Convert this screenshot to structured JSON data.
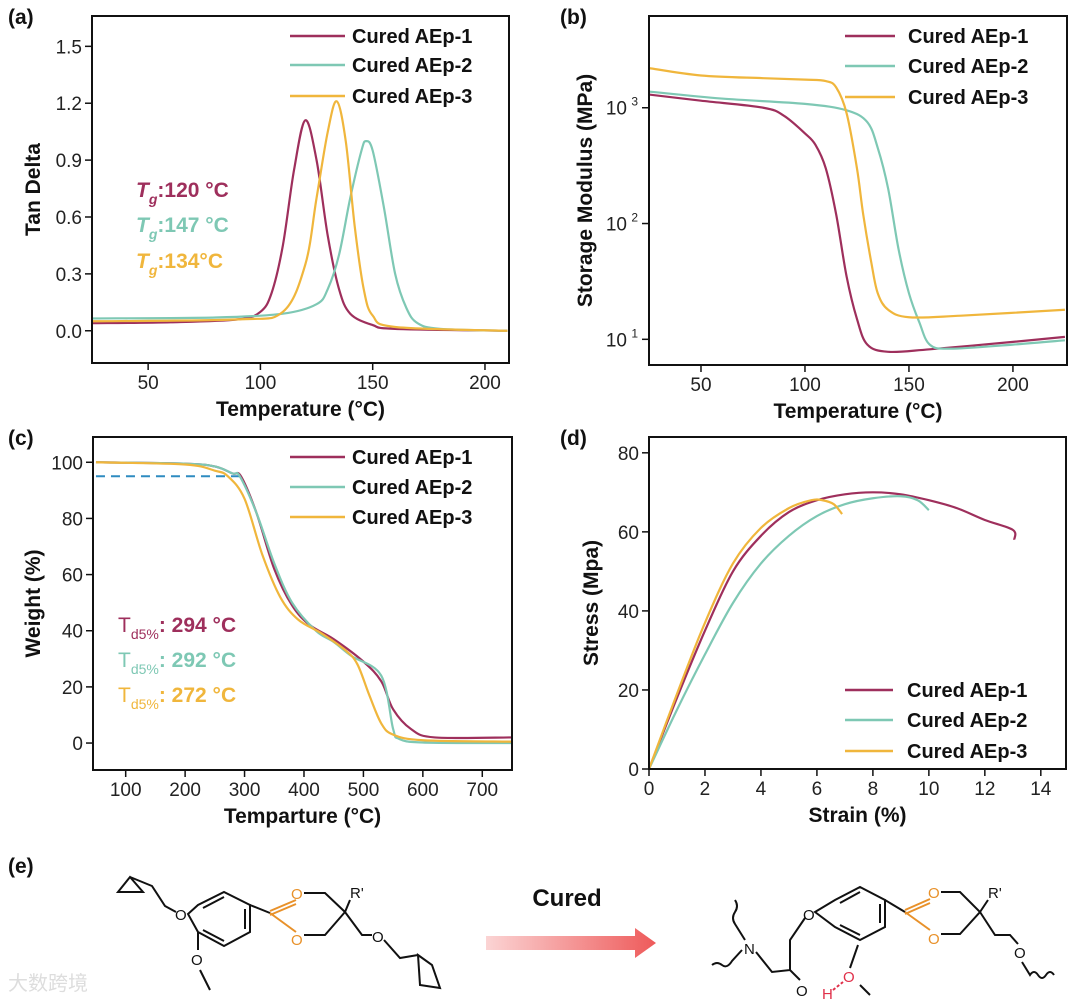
{
  "colors": {
    "AEp-1": "#9e2f5c",
    "AEp-2": "#7ec8b4",
    "AEp-3": "#f0b63c",
    "dashed": "#2e8bc0",
    "acetal": "#e8912a",
    "hbond": "#e0304a"
  },
  "chart_data": [
    {
      "panel": "(a)",
      "type": "line",
      "xlabel": "Temperature (°C)",
      "ylabel": "Tan Delta",
      "xlim": [
        25,
        210.7
      ],
      "ylim": [
        -0.17,
        1.66
      ],
      "yscale": "linear",
      "xticks": [
        50,
        100,
        150,
        200
      ],
      "xtick_labels": [
        "50",
        "100",
        "150",
        "200"
      ],
      "yticks": [
        0,
        0.3,
        0.6,
        0.9,
        1.2,
        1.5
      ],
      "ytick_labels": [
        "0.0",
        "0.3",
        "0.6",
        "0.9",
        "1.2",
        "1.5"
      ],
      "legend": "top-right",
      "series": [
        {
          "name": "Cured AEp-1",
          "color_key": "AEp-1",
          "x": [
            25,
            60,
            90,
            100,
            105,
            110,
            115,
            120,
            125,
            130,
            135,
            140,
            150,
            160,
            210
          ],
          "y": [
            0.04,
            0.045,
            0.06,
            0.1,
            0.2,
            0.45,
            0.85,
            1.11,
            0.9,
            0.5,
            0.22,
            0.09,
            0.03,
            0.01,
            0.0
          ]
        },
        {
          "name": "Cured AEp-2",
          "color_key": "AEp-2",
          "x": [
            25,
            80,
            110,
            125,
            130,
            135,
            140,
            145,
            147,
            150,
            155,
            160,
            165,
            170,
            180,
            210
          ],
          "y": [
            0.065,
            0.07,
            0.09,
            0.14,
            0.22,
            0.4,
            0.7,
            0.95,
            1.0,
            0.95,
            0.65,
            0.3,
            0.12,
            0.04,
            0.01,
            0.0
          ]
        },
        {
          "name": "Cured AEp-3",
          "color_key": "AEp-3",
          "x": [
            25,
            90,
            110,
            120,
            125,
            130,
            134,
            138,
            142,
            146,
            150,
            160,
            210
          ],
          "y": [
            0.05,
            0.06,
            0.1,
            0.35,
            0.7,
            1.05,
            1.21,
            1.0,
            0.55,
            0.22,
            0.08,
            0.02,
            0.0
          ]
        }
      ],
      "annotations": [
        {
          "symbol": "T",
          "sub": "g",
          "text": ":120 °C",
          "color_key": "AEp-1"
        },
        {
          "symbol": "T",
          "sub": "g",
          "text": ":147 °C",
          "color_key": "AEp-2"
        },
        {
          "symbol": "T",
          "sub": "g",
          "text": ":134°C",
          "color_key": "AEp-3"
        }
      ]
    },
    {
      "panel": "(b)",
      "type": "line",
      "xlabel": "Temperature (°C)",
      "ylabel": "Storage Modulus (MPa)",
      "xlim": [
        25,
        226
      ],
      "ylim": [
        6,
        6200
      ],
      "yscale": "log",
      "xticks": [
        50,
        100,
        150,
        200
      ],
      "xtick_labels": [
        "50",
        "100",
        "150",
        "200"
      ],
      "yticks": [
        10,
        100,
        1000
      ],
      "ytick_labels": [
        "10",
        "10",
        "10"
      ],
      "ytick_exponents": [
        "1",
        "2",
        "3"
      ],
      "legend": "top-right",
      "series": [
        {
          "name": "Cured AEp-1",
          "color_key": "AEp-1",
          "x": [
            25,
            50,
            80,
            90,
            100,
            105,
            110,
            115,
            120,
            125,
            130,
            140,
            160,
            200,
            225
          ],
          "y": [
            1300,
            1150,
            1000,
            850,
            600,
            480,
            300,
            120,
            35,
            15,
            9,
            7.8,
            8.2,
            9.5,
            10.5
          ]
        },
        {
          "name": "Cured AEp-2",
          "color_key": "AEp-2",
          "x": [
            25,
            60,
            100,
            120,
            130,
            135,
            140,
            145,
            150,
            155,
            160,
            170,
            200,
            225
          ],
          "y": [
            1380,
            1200,
            1080,
            950,
            750,
            450,
            200,
            60,
            25,
            14,
            9,
            8.3,
            9,
            9.8
          ]
        },
        {
          "name": "Cured AEp-3",
          "color_key": "AEp-3",
          "x": [
            25,
            50,
            80,
            100,
            110,
            115,
            120,
            125,
            128,
            132,
            135,
            140,
            150,
            175,
            225
          ],
          "y": [
            2200,
            1900,
            1800,
            1750,
            1700,
            1500,
            900,
            300,
            120,
            45,
            25,
            18,
            15.5,
            16,
            18
          ]
        }
      ]
    },
    {
      "panel": "(c)",
      "type": "line",
      "xlabel": "Temparture (°C)",
      "ylabel": "Weight (%)",
      "xlim": [
        45,
        750
      ],
      "ylim": [
        -9.6,
        109
      ],
      "yscale": "linear",
      "xticks": [
        100,
        200,
        300,
        400,
        500,
        600,
        700
      ],
      "xtick_labels": [
        "100",
        "200",
        "300",
        "400",
        "500",
        "600",
        "700"
      ],
      "yticks": [
        0,
        20,
        40,
        60,
        80,
        100
      ],
      "ytick_labels": [
        "0",
        "20",
        "40",
        "60",
        "80",
        "100"
      ],
      "legend": "top-right",
      "reference_line": {
        "y": 95,
        "x": [
          50,
          295
        ],
        "style": "dashed"
      },
      "series": [
        {
          "name": "Cured AEp-1",
          "color_key": "AEp-1",
          "x": [
            50,
            200,
            250,
            280,
            294,
            320,
            350,
            380,
            410,
            450,
            500,
            530,
            550,
            580,
            620,
            750
          ],
          "y": [
            100,
            99.5,
            98.5,
            96,
            95,
            82,
            62,
            49,
            42,
            37,
            29,
            22,
            12,
            5,
            2,
            2
          ]
        },
        {
          "name": "Cured AEp-2",
          "color_key": "AEp-2",
          "x": [
            50,
            200,
            250,
            280,
            292,
            320,
            350,
            380,
            420,
            450,
            480,
            530,
            550,
            560,
            600,
            750
          ],
          "y": [
            100,
            99.5,
            98.5,
            96,
            95,
            82,
            64,
            50,
            40,
            36,
            31,
            24,
            5,
            1.5,
            0.2,
            0
          ]
        },
        {
          "name": "Cured AEp-3",
          "color_key": "AEp-3",
          "x": [
            50,
            200,
            250,
            272,
            300,
            330,
            360,
            390,
            430,
            470,
            490,
            510,
            530,
            550,
            600,
            750
          ],
          "y": [
            100,
            99.2,
            97,
            95,
            87,
            67,
            52,
            44,
            39,
            33,
            28,
            17,
            7,
            3,
            1,
            0.5
          ]
        }
      ],
      "annotations": [
        {
          "symbol": "T",
          "sub": "d5%",
          "text": ": 294 °C",
          "color_key": "AEp-1"
        },
        {
          "symbol": "T",
          "sub": "d5%",
          "text": ": 292 °C",
          "color_key": "AEp-2"
        },
        {
          "symbol": "T",
          "sub": "d5%",
          "text": ": 272 °C",
          "color_key": "AEp-3"
        }
      ]
    },
    {
      "panel": "(d)",
      "type": "line",
      "xlabel": "Strain (%)",
      "ylabel": "Stress (Mpa)",
      "xlim": [
        0,
        14.9
      ],
      "ylim": [
        0,
        84
      ],
      "yscale": "linear",
      "xticks": [
        0,
        2,
        4,
        6,
        8,
        10,
        12,
        14
      ],
      "xtick_labels": [
        "0",
        "2",
        "4",
        "6",
        "8",
        "10",
        "12",
        "14"
      ],
      "yticks": [
        0,
        20,
        40,
        60,
        80
      ],
      "ytick_labels": [
        "0",
        "20",
        "40",
        "60",
        "80"
      ],
      "legend": "bottom-right",
      "series": [
        {
          "name": "Cured AEp-1",
          "color_key": "AEp-1",
          "x": [
            0,
            1,
            2,
            3,
            4,
            5,
            6,
            7,
            8,
            9,
            10,
            11,
            12,
            13,
            13.05
          ],
          "y": [
            0,
            18,
            35,
            50,
            59,
            65,
            68,
            69.5,
            70,
            69.5,
            68,
            66,
            63,
            60.5,
            58
          ]
        },
        {
          "name": "Cured AEp-2",
          "color_key": "AEp-2",
          "x": [
            0,
            1,
            2,
            3,
            4,
            5,
            6,
            7,
            8,
            9,
            9.6,
            10
          ],
          "y": [
            0,
            15,
            29,
            42,
            52,
            59,
            64,
            67,
            68.5,
            69,
            68,
            65.5
          ]
        },
        {
          "name": "Cured AEp-3",
          "color_key": "AEp-3",
          "x": [
            0,
            1,
            2,
            3,
            4,
            5,
            5.8,
            6.2,
            6.6,
            6.9
          ],
          "y": [
            0,
            19,
            37,
            52,
            61,
            66,
            68,
            68,
            67,
            64.5
          ]
        }
      ]
    }
  ],
  "scheme": {
    "panel": "(e)",
    "arrow_label": "Cured",
    "atoms": {
      "O": "O",
      "N": "N",
      "H": "H",
      "R": "R'"
    },
    "watermark": "大数跨境"
  }
}
